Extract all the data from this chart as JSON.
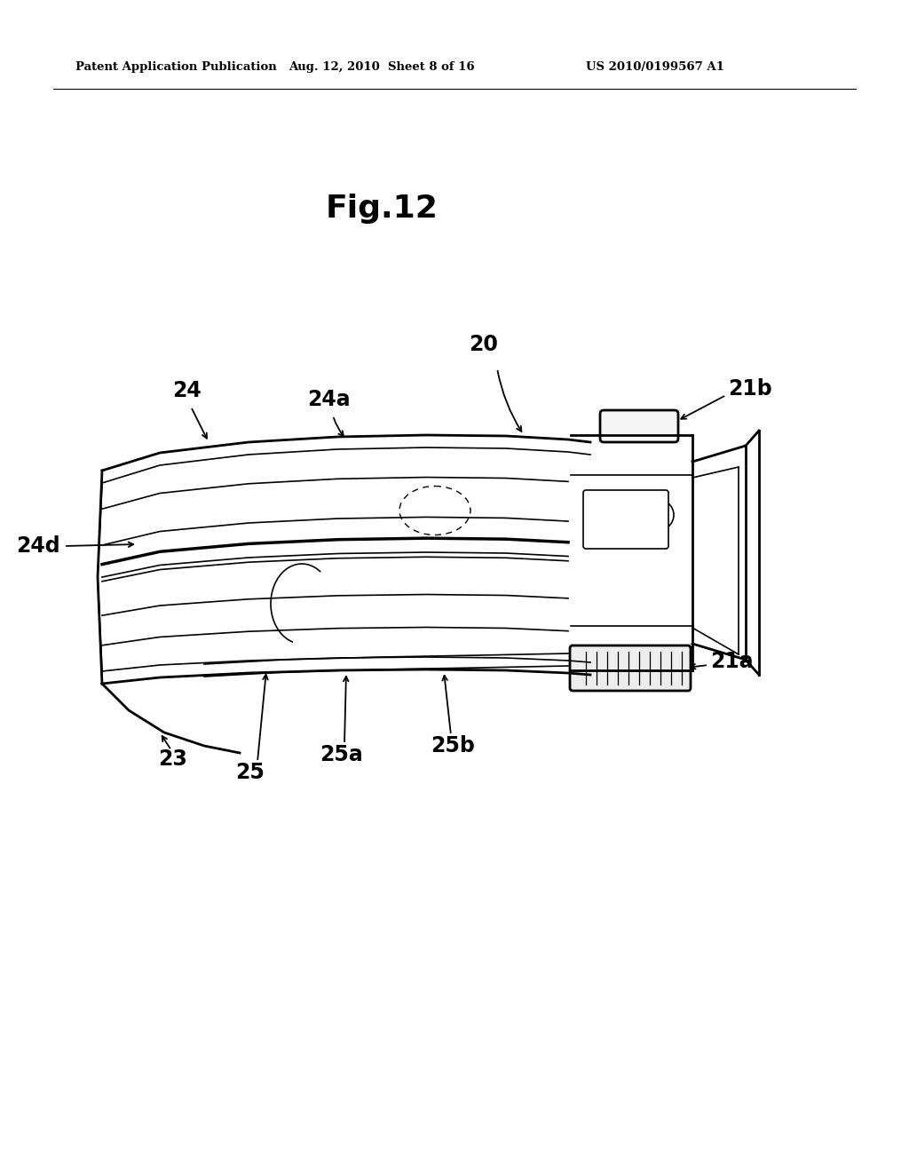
{
  "header_left": "Patent Application Publication",
  "header_middle": "Aug. 12, 2010  Sheet 8 of 16",
  "header_right": "US 2010/0199567 A1",
  "fig_title": "Fig.12",
  "background_color": "#ffffff",
  "line_color": "#000000"
}
